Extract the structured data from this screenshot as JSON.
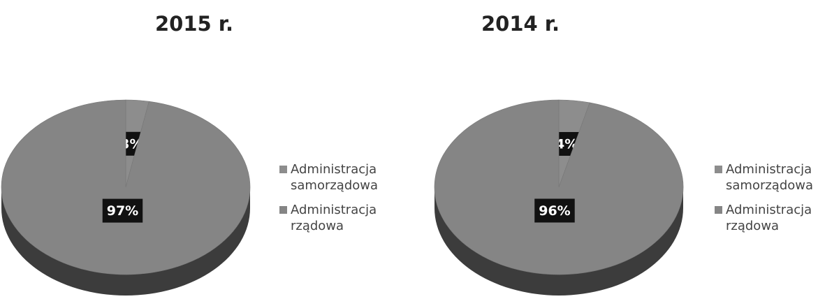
{
  "chart_data": [
    {
      "type": "pie",
      "title": "2015 r.",
      "categories": [
        "Administracja samorządowa",
        "Administracja rządowa"
      ],
      "values": [
        3,
        97
      ],
      "value_labels": [
        "3%",
        "97%"
      ],
      "colors": [
        "#8d8d8d",
        "#858585"
      ]
    },
    {
      "type": "pie",
      "title": "2014 r.",
      "categories": [
        "Administracja samorządowa",
        "Administracja rządowa"
      ],
      "values": [
        4,
        96
      ],
      "value_labels": [
        "4%",
        "96%"
      ],
      "colors": [
        "#8d8d8d",
        "#858585"
      ]
    }
  ]
}
